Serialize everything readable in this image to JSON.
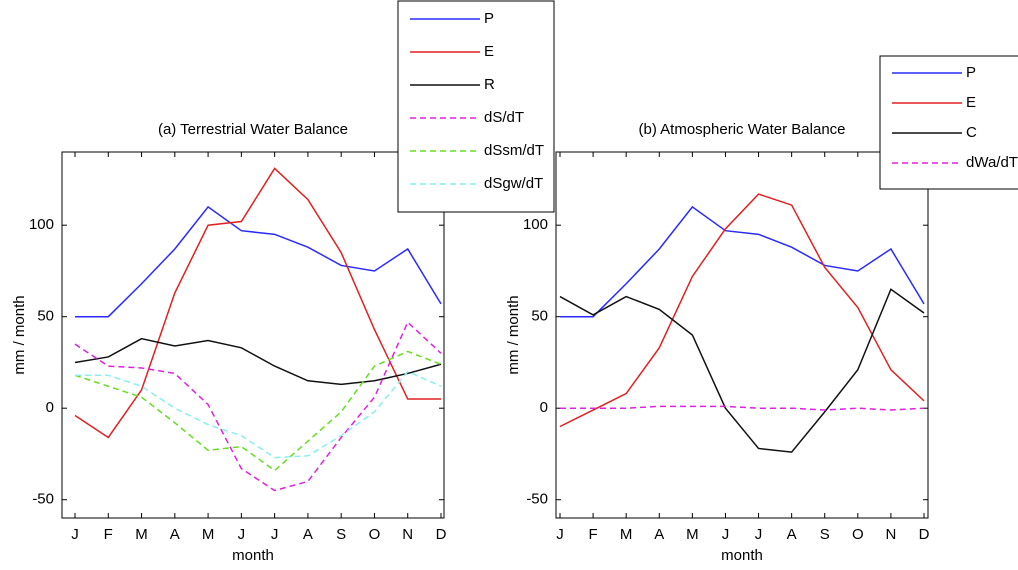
{
  "chart_data": [
    {
      "type": "line",
      "title": "(a) Terrestrial Water Balance",
      "x_label": "month",
      "y_label": "mm / month",
      "categories": [
        "J",
        "F",
        "M",
        "A",
        "M",
        "J",
        "J",
        "A",
        "S",
        "O",
        "N",
        "D"
      ],
      "ylim": [
        -60,
        140
      ],
      "yticks": [
        -50,
        0,
        50,
        100
      ],
      "series": [
        {
          "name": "P",
          "color": "#2a2aff",
          "dash": false,
          "width": 1.5,
          "values": [
            50,
            50,
            68,
            87,
            110,
            97,
            95,
            88,
            78,
            75,
            87,
            57
          ]
        },
        {
          "name": "E",
          "color": "#e02020",
          "dash": false,
          "width": 1.5,
          "values": [
            -4,
            -16,
            10,
            63,
            100,
            102,
            131,
            114,
            85,
            43,
            5,
            5
          ]
        },
        {
          "name": "R",
          "color": "#111111",
          "dash": false,
          "width": 1.5,
          "values": [
            25,
            28,
            38,
            34,
            37,
            33,
            23,
            15,
            13,
            15,
            19,
            24
          ]
        },
        {
          "name": "dS/dT",
          "color": "#e020e0",
          "dash": true,
          "width": 1.5,
          "values": [
            35,
            23,
            22,
            19,
            2,
            -33,
            -45,
            -40,
            -16,
            6,
            47,
            30
          ]
        },
        {
          "name": "dSsm/dT",
          "color": "#66dd22",
          "dash": true,
          "width": 1.5,
          "values": [
            18,
            12,
            6,
            -8,
            -23,
            -21,
            -34,
            -18,
            -2,
            23,
            31,
            24
          ]
        },
        {
          "name": "dSgw/dT",
          "color": "#88eeee",
          "dash": true,
          "width": 1.5,
          "values": [
            18,
            18,
            12,
            0,
            -9,
            -15,
            -27,
            -26,
            -15,
            -2,
            20,
            12
          ]
        }
      ]
    },
    {
      "type": "line",
      "title": "(b) Atmospheric Water Balance",
      "x_label": "month",
      "y_label": "mm / month",
      "categories": [
        "J",
        "F",
        "M",
        "A",
        "M",
        "J",
        "J",
        "A",
        "S",
        "O",
        "N",
        "D"
      ],
      "ylim": [
        -60,
        140
      ],
      "yticks": [
        -50,
        0,
        50,
        100
      ],
      "series": [
        {
          "name": "P",
          "color": "#2a2aff",
          "dash": false,
          "width": 1.5,
          "values": [
            50,
            50,
            68,
            87,
            110,
            97,
            95,
            88,
            78,
            75,
            87,
            57
          ]
        },
        {
          "name": "E",
          "color": "#e02020",
          "dash": false,
          "width": 1.5,
          "values": [
            -10,
            -1,
            8,
            33,
            72,
            98,
            117,
            111,
            77,
            55,
            21,
            4
          ]
        },
        {
          "name": "C",
          "color": "#111111",
          "dash": false,
          "width": 1.5,
          "values": [
            61,
            51,
            61,
            54,
            40,
            0,
            -22,
            -24,
            -2,
            21,
            65,
            52
          ]
        },
        {
          "name": "dWa/dT",
          "color": "#e020e0",
          "dash": true,
          "width": 1.5,
          "values": [
            0,
            0,
            0,
            1,
            1,
            1,
            0,
            0,
            -1,
            0,
            -1,
            0
          ]
        }
      ]
    }
  ]
}
